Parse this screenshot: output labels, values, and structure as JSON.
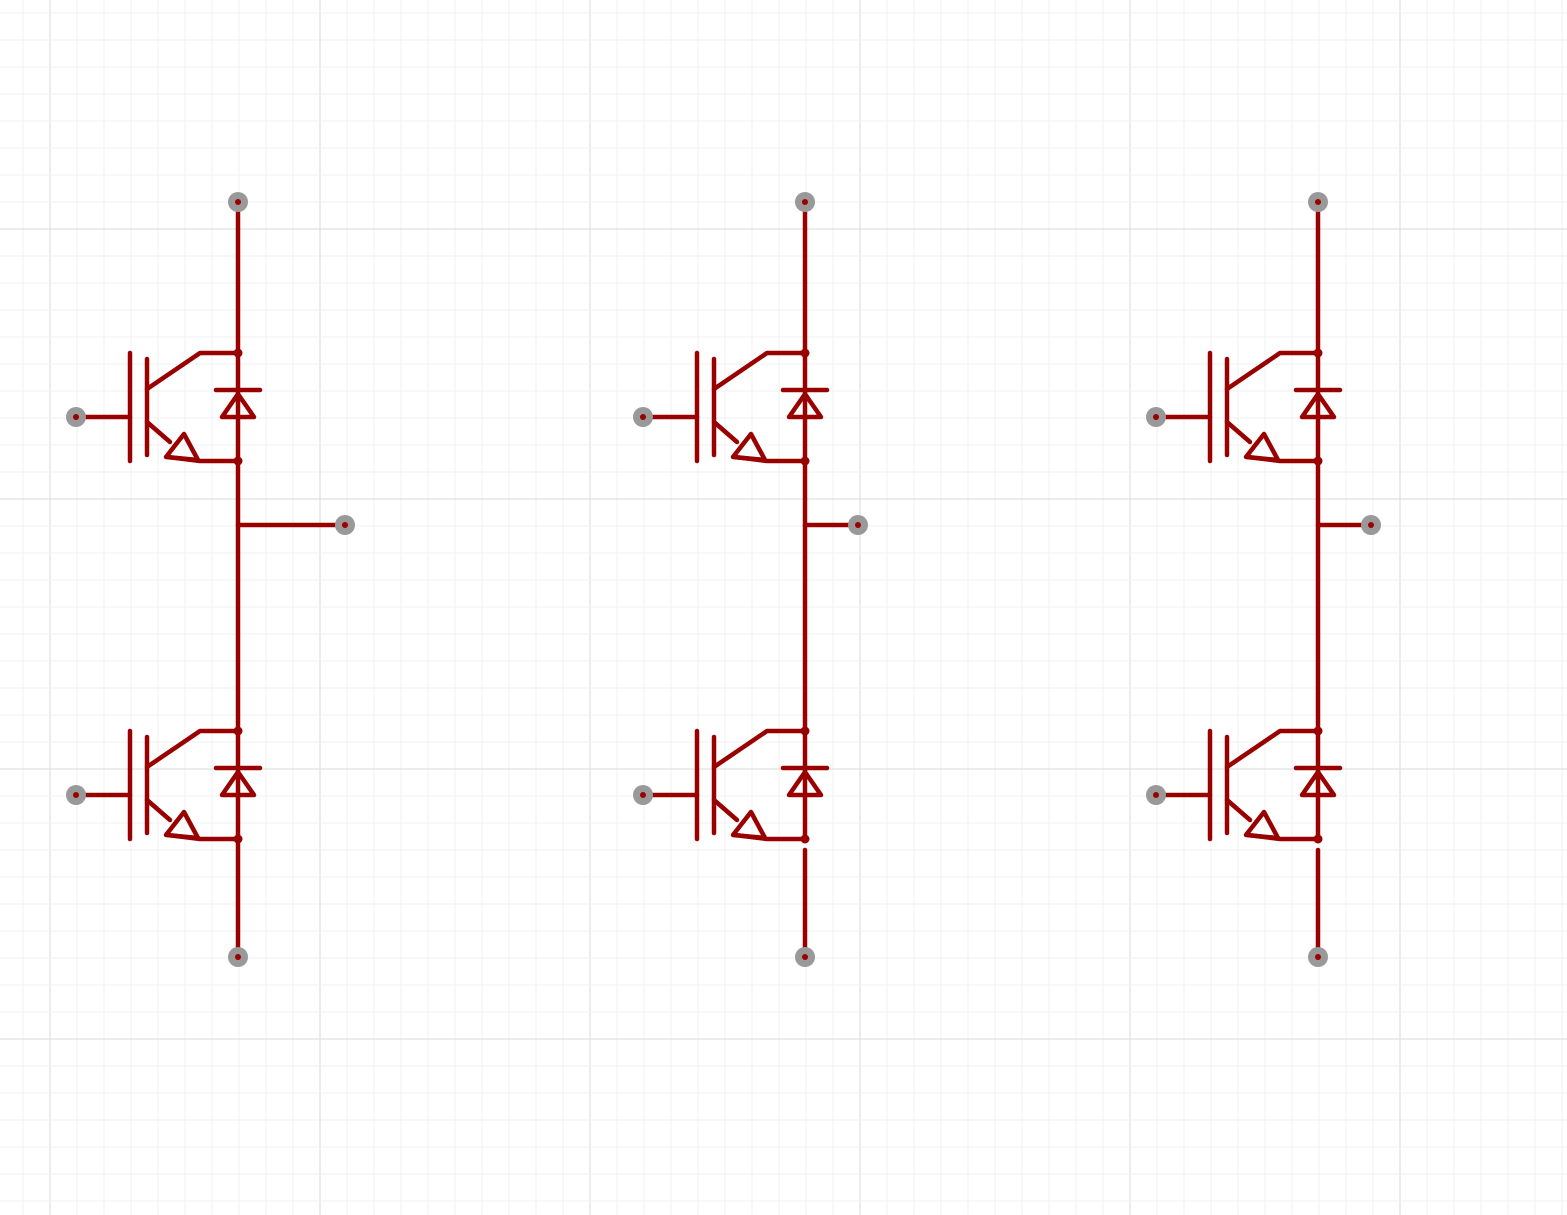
{
  "canvas": {
    "background": "#ffffff",
    "grid_minor_color": "#f0f0f0",
    "grid_major_color": "#e0e0e0"
  },
  "colors": {
    "wire": "#990000",
    "pin": "#999999"
  },
  "schematic": {
    "symbol": "igbt-half-bridge",
    "legs": [
      {
        "id": "leg-1",
        "devices": [
          "igbt-high",
          "igbt-low"
        ],
        "pins": [
          "collector",
          "gate-high",
          "gate-low",
          "phase-out",
          "emitter"
        ]
      },
      {
        "id": "leg-2",
        "devices": [
          "igbt-high",
          "igbt-low"
        ],
        "pins": [
          "collector",
          "gate-high",
          "gate-low",
          "phase-out",
          "emitter"
        ]
      },
      {
        "id": "leg-3",
        "devices": [
          "igbt-high",
          "igbt-low"
        ],
        "pins": [
          "collector",
          "gate-high",
          "gate-low",
          "phase-out",
          "emitter"
        ]
      }
    ]
  }
}
